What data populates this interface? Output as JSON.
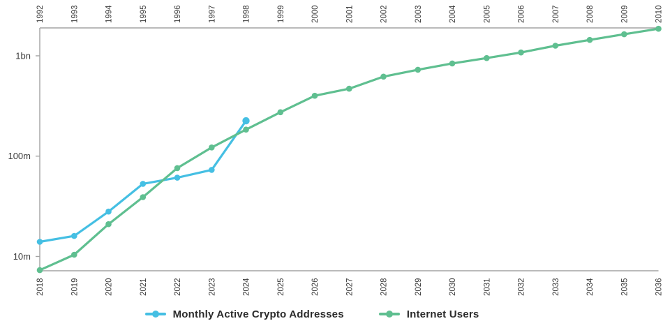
{
  "chart_data": {
    "type": "line",
    "title": "",
    "y_scale": "log",
    "y_unit": "users / addresses (millions)",
    "ylim_millions": [
      7.2,
      1897
    ],
    "grid": false,
    "legend_position": "bottom-center",
    "axis_color": "#a3a3a3",
    "label_color": "#3c3c3c",
    "y_ticks": [
      {
        "label": "1bn",
        "millions": 1000
      },
      {
        "label": "100m",
        "millions": 100
      },
      {
        "label": "10m",
        "millions": 10
      }
    ],
    "top_axis": {
      "years": [
        "1992",
        "1993",
        "1994",
        "1995",
        "1996",
        "1997",
        "1998",
        "1999",
        "2000",
        "2001",
        "2002",
        "2003",
        "2004",
        "2005",
        "2006",
        "2007",
        "2008",
        "2009",
        "2010"
      ]
    },
    "bottom_axis": {
      "years": [
        "2018",
        "2019",
        "2020",
        "2021",
        "2022",
        "2023",
        "2024",
        "2025",
        "2026",
        "2027",
        "2028",
        "2029",
        "2030",
        "2031",
        "2032",
        "2033",
        "2034",
        "2035",
        "2036"
      ]
    },
    "series": [
      {
        "id": "crypto",
        "name": "Monthly Active Crypto Addresses",
        "color": "#45bfe3",
        "axis": "bottom",
        "start_index": 0,
        "x_years": [
          "2018",
          "2019",
          "2020",
          "2021",
          "2022",
          "2023",
          "2024"
        ],
        "values_millions": [
          14,
          16,
          28,
          53,
          61,
          73,
          225
        ]
      },
      {
        "id": "internet",
        "name": "Internet Users",
        "color": "#5fbf90",
        "axis": "top",
        "start_index": 0,
        "x_years": [
          "1992",
          "1993",
          "1994",
          "1995",
          "1996",
          "1997",
          "1998",
          "1999",
          "2000",
          "2001",
          "2002",
          "2003",
          "2004",
          "2005",
          "2006",
          "2007",
          "2008",
          "2009",
          "2010"
        ],
        "values_millions": [
          7.3,
          10.4,
          21,
          39,
          76,
          122,
          184,
          274,
          400,
          470,
          620,
          727,
          840,
          950,
          1080,
          1260,
          1440,
          1640,
          1860
        ]
      }
    ]
  },
  "legend": {
    "items": [
      {
        "label": "Monthly Active Crypto Addresses",
        "color": "#45bfe3"
      },
      {
        "label": "Internet Users",
        "color": "#5fbf90"
      }
    ]
  }
}
